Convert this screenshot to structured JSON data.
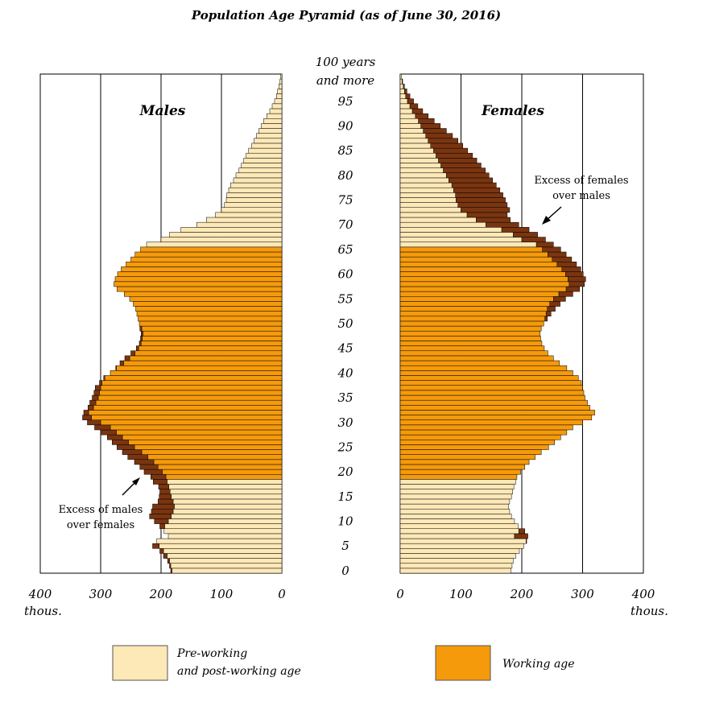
{
  "chart_data": {
    "type": "bar",
    "title": "Population Age Pyramid (as of June 30, 2016)",
    "orientation": "horizontal-pyramid",
    "x_unit": "thous.",
    "xlim": [
      0,
      400
    ],
    "x_ticks": [
      400,
      300,
      200,
      100,
      0
    ],
    "age_labels": [
      "100 years",
      "and more",
      "95",
      "90",
      "85",
      "80",
      "75",
      "70",
      "65",
      "60",
      "55",
      "50",
      "45",
      "40",
      "35",
      "30",
      "25",
      "20",
      "15",
      "10",
      "5",
      "0"
    ],
    "age_ticks": [
      95,
      90,
      85,
      80,
      75,
      70,
      65,
      60,
      55,
      50,
      45,
      40,
      35,
      30,
      25,
      20,
      15,
      10,
      5,
      0
    ],
    "working_age_range": [
      19,
      65
    ],
    "males_label": "Males",
    "females_label": "Females",
    "legend": {
      "pre_post_line1": "Pre-working",
      "pre_post_line2": "and post-working age",
      "working": "Working age"
    },
    "annotation_females": [
      "Excess of females",
      "over males"
    ],
    "annotation_males": [
      "Excess of males",
      "over females"
    ],
    "series": [
      {
        "name": "Males",
        "values": [
          184,
          186,
          189,
          196,
          202,
          214,
          207,
          188,
          195,
          202,
          211,
          219,
          216,
          214,
          205,
          203,
          202,
          204,
          213,
          217,
          228,
          235,
          244,
          255,
          264,
          273,
          281,
          289,
          300,
          310,
          322,
          330,
          328,
          321,
          318,
          314,
          311,
          309,
          302,
          295,
          284,
          275,
          268,
          260,
          250,
          241,
          236,
          234,
          233,
          235,
          236,
          238,
          240,
          242,
          246,
          252,
          261,
          273,
          278,
          276,
          272,
          266,
          258,
          250,
          243,
          234,
          224,
          200,
          186,
          167,
          141,
          125,
          110,
          100,
          95,
          92,
          91,
          88,
          85,
          80,
          76,
          71,
          67,
          63,
          59,
          55,
          50,
          46,
          42,
          38,
          34,
          30,
          25,
          20,
          16,
          12,
          9,
          7,
          5,
          3,
          2
        ]
      },
      {
        "name": "Females",
        "values": [
          182,
          184,
          186,
          190,
          196,
          203,
          208,
          210,
          205,
          194,
          188,
          183,
          180,
          178,
          180,
          183,
          185,
          187,
          190,
          192,
          198,
          205,
          212,
          222,
          232,
          244,
          254,
          264,
          274,
          284,
          300,
          315,
          320,
          312,
          308,
          304,
          302,
          300,
          298,
          293,
          284,
          274,
          262,
          252,
          243,
          237,
          233,
          231,
          230,
          232,
          236,
          242,
          248,
          255,
          263,
          272,
          284,
          295,
          303,
          305,
          301,
          297,
          290,
          282,
          273,
          264,
          252,
          239,
          226,
          212,
          195,
          181,
          176,
          180,
          176,
          173,
          169,
          164,
          158,
          152,
          146,
          140,
          133,
          126,
          119,
          111,
          103,
          95,
          86,
          76,
          66,
          56,
          46,
          37,
          29,
          22,
          16,
          11,
          7,
          4,
          2
        ]
      }
    ]
  }
}
